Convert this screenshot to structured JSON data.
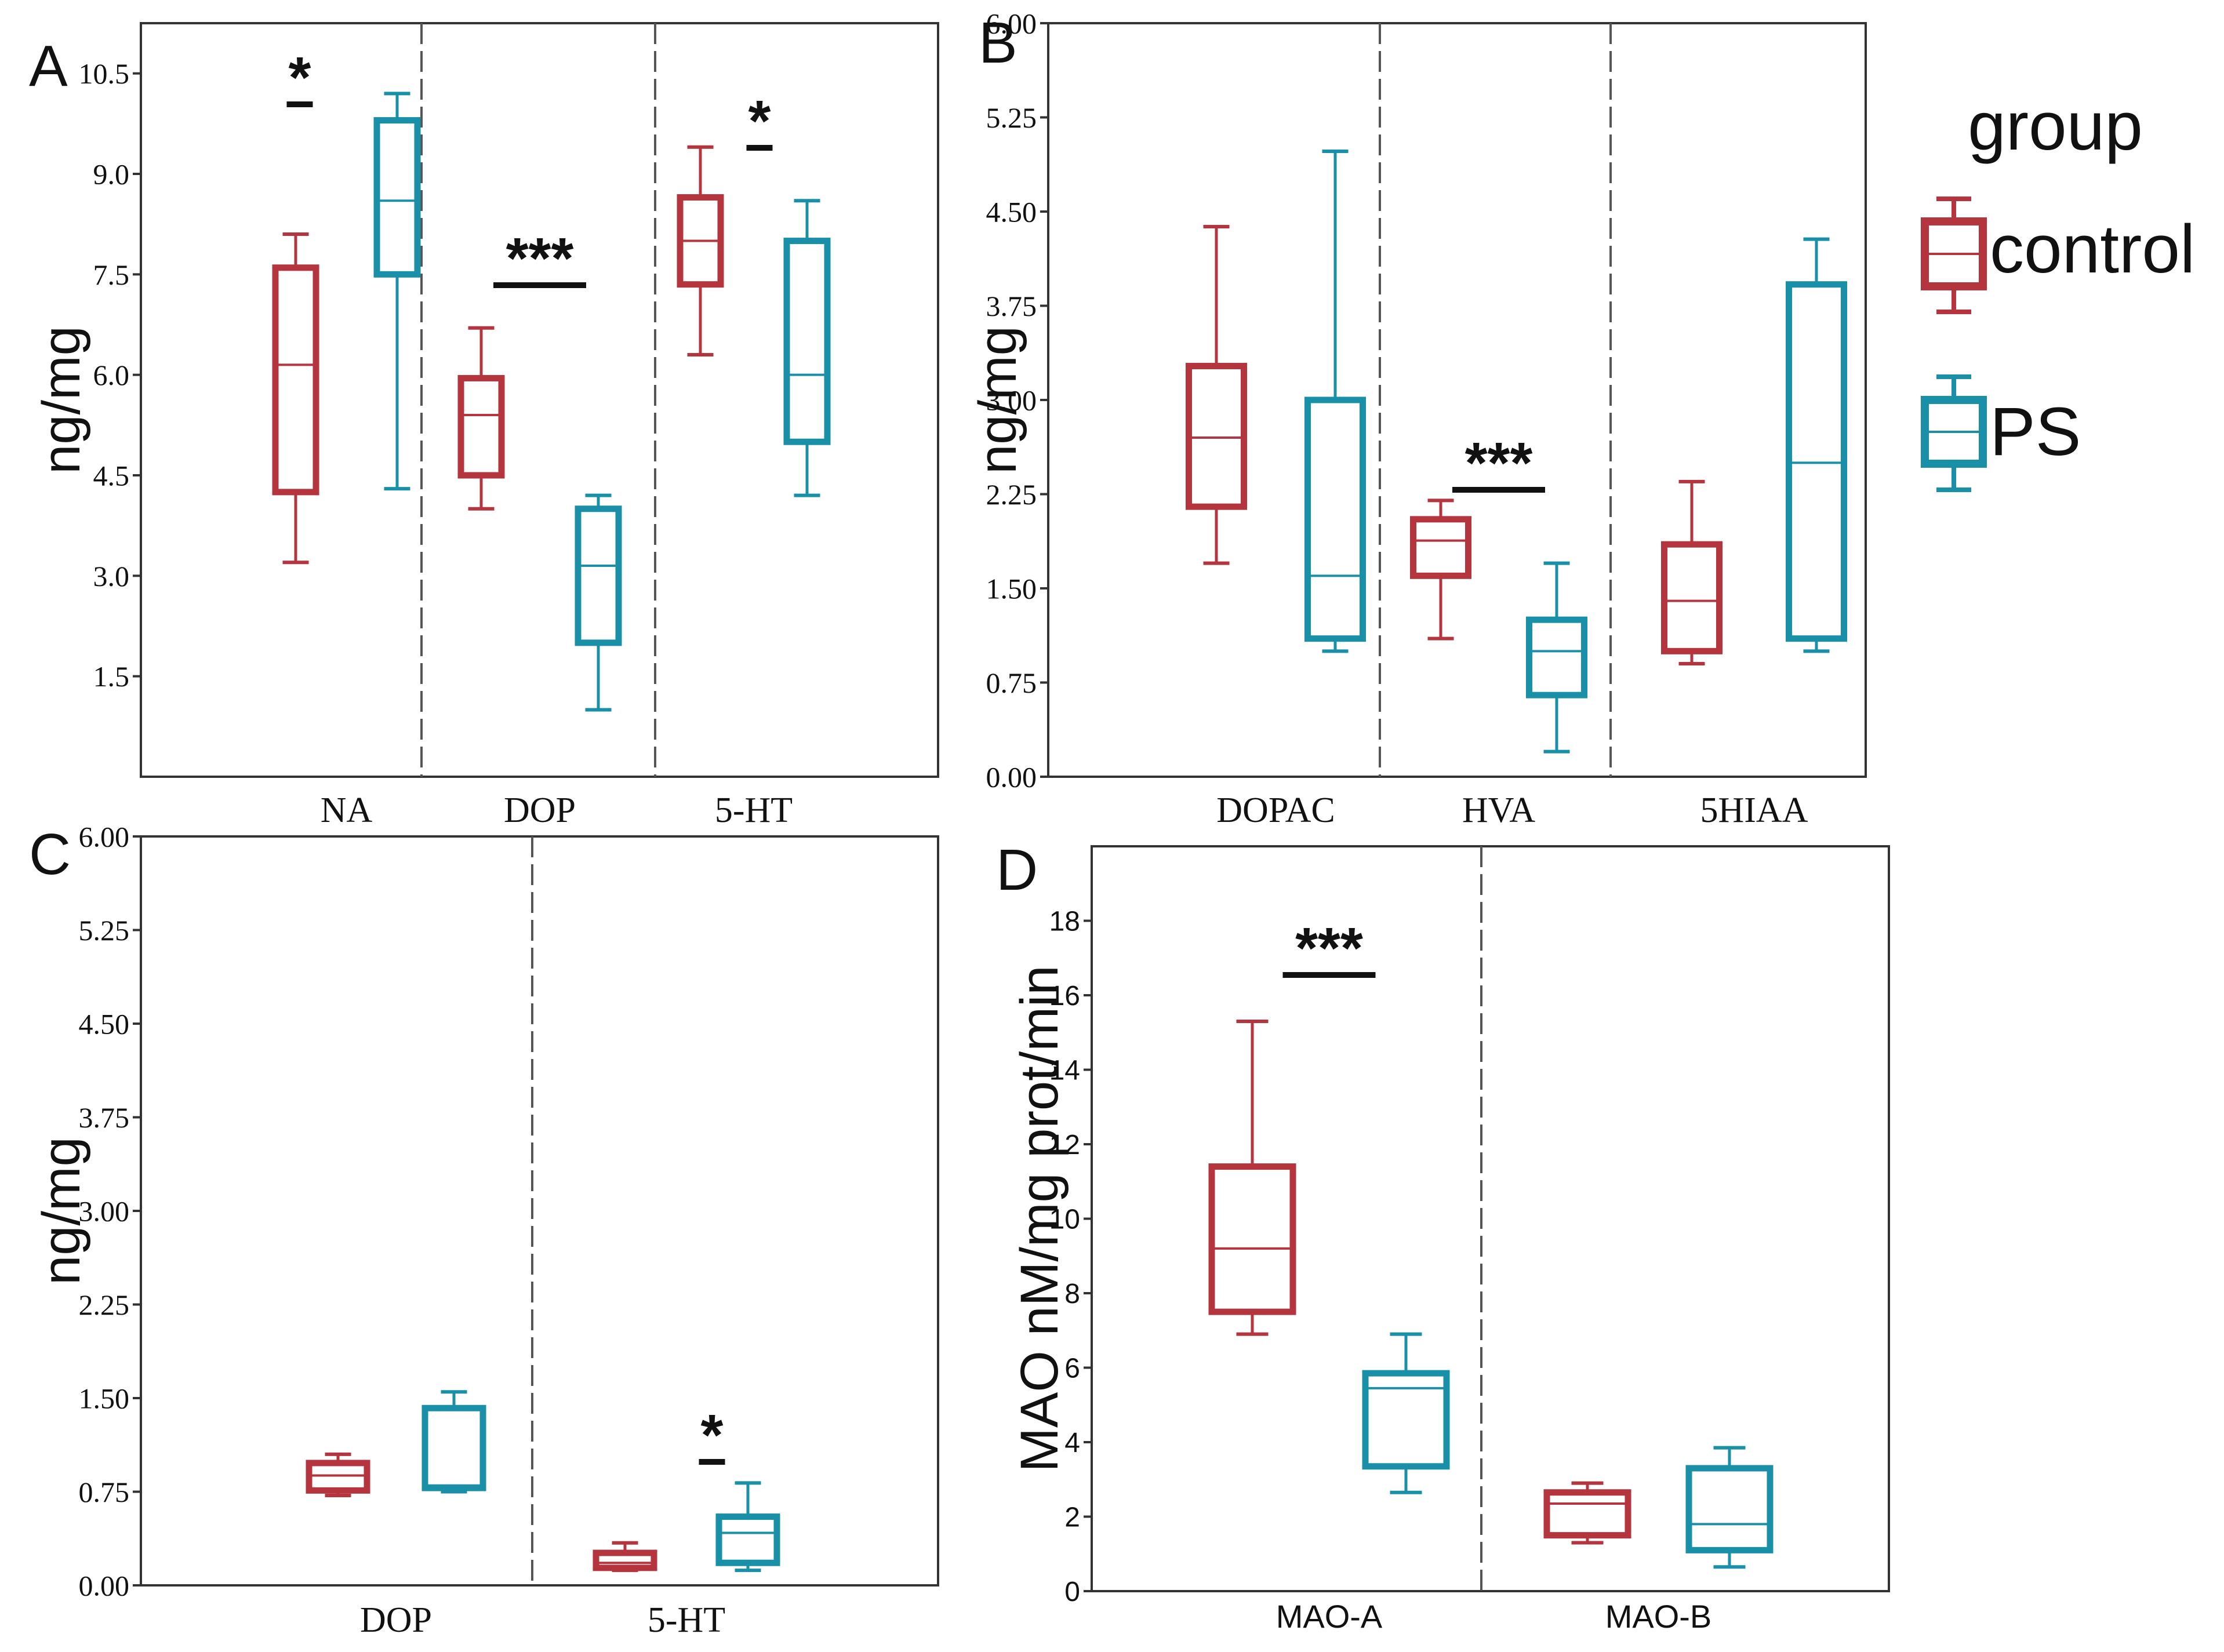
{
  "legend": {
    "title": "group",
    "items": [
      {
        "label": "control",
        "color": "#b5353f"
      },
      {
        "label": "PS",
        "color": "#1a8fa8"
      }
    ]
  },
  "colors": {
    "control": "#b5353f",
    "PS": "#1a8fa8",
    "axis": "#333333",
    "text": "#111111"
  },
  "chart_data": [
    {
      "type": "box",
      "panel_label": "A",
      "ylabel": "ng/mg",
      "ylim": [
        0,
        11.25
      ],
      "yticks": [
        1.5,
        3.0,
        4.5,
        6.0,
        7.5,
        9.0,
        10.5
      ],
      "ytick_labels": [
        "1.5",
        "3.0",
        "4.5",
        "6.0",
        "7.5",
        "9.0",
        "10.5"
      ],
      "categories": [
        "NA",
        "DOP",
        "5-HT"
      ],
      "series": [
        {
          "name": "control",
          "boxes": [
            {
              "min": 3.2,
              "q1": 4.25,
              "median": 6.15,
              "q3": 7.6,
              "max": 8.1
            },
            {
              "min": 4.0,
              "q1": 4.5,
              "median": 5.4,
              "q3": 5.95,
              "max": 6.7
            },
            {
              "min": 6.3,
              "q1": 7.35,
              "median": 8.0,
              "q3": 8.65,
              "max": 9.4
            }
          ]
        },
        {
          "name": "PS",
          "boxes": [
            {
              "min": 4.3,
              "q1": 7.5,
              "median": 8.6,
              "q3": 9.8,
              "max": 10.2
            },
            {
              "min": 1.0,
              "q1": 2.0,
              "median": 3.15,
              "q3": 4.0,
              "max": 4.2
            },
            {
              "min": 4.2,
              "q1": 5.0,
              "median": 6.0,
              "q3": 8.0,
              "max": 8.6
            }
          ]
        }
      ],
      "significance": [
        {
          "category": "NA",
          "label": "*"
        },
        {
          "category": "DOP",
          "label": "***"
        },
        {
          "category": "5-HT",
          "label": "*"
        }
      ]
    },
    {
      "type": "box",
      "panel_label": "B",
      "ylabel": "ng/mg",
      "ylim": [
        0,
        6.0
      ],
      "yticks": [
        0,
        0.75,
        1.5,
        2.25,
        3.0,
        3.75,
        4.5,
        5.25,
        6.0
      ],
      "ytick_labels": [
        "0.00",
        "0.75",
        "1.50",
        "2.25",
        "3.00",
        "3.75",
        "4.50",
        "5.25",
        "6.00"
      ],
      "categories": [
        "DOPAC",
        "HVA",
        "5HIAA"
      ],
      "series": [
        {
          "name": "control",
          "boxes": [
            {
              "min": 1.7,
              "q1": 2.15,
              "median": 2.7,
              "q3": 3.27,
              "max": 4.38
            },
            {
              "min": 1.1,
              "q1": 1.6,
              "median": 1.88,
              "q3": 2.05,
              "max": 2.2
            },
            {
              "min": 0.9,
              "q1": 1.0,
              "median": 1.4,
              "q3": 1.85,
              "max": 2.35
            }
          ]
        },
        {
          "name": "PS",
          "boxes": [
            {
              "min": 1.0,
              "q1": 1.1,
              "median": 1.6,
              "q3": 3.0,
              "max": 4.98
            },
            {
              "min": 0.2,
              "q1": 0.65,
              "median": 1.0,
              "q3": 1.25,
              "max": 1.7
            },
            {
              "min": 1.0,
              "q1": 1.1,
              "median": 2.5,
              "q3": 3.92,
              "max": 4.28
            }
          ]
        }
      ],
      "significance": [
        {
          "category": "HVA",
          "label": "***"
        }
      ]
    },
    {
      "type": "box",
      "panel_label": "C",
      "ylabel": "ng/mg",
      "ylim": [
        0,
        6.0
      ],
      "yticks": [
        0,
        0.75,
        1.5,
        2.25,
        3.0,
        3.75,
        4.5,
        5.25,
        6.0
      ],
      "ytick_labels": [
        "0.00",
        "0.75",
        "1.50",
        "2.25",
        "3.00",
        "3.75",
        "4.50",
        "5.25",
        "6.00"
      ],
      "categories": [
        "DOP",
        "5-HT"
      ],
      "series": [
        {
          "name": "control",
          "boxes": [
            {
              "min": 0.72,
              "q1": 0.76,
              "median": 0.88,
              "q3": 0.98,
              "max": 1.05
            },
            {
              "min": 0.12,
              "q1": 0.14,
              "median": 0.18,
              "q3": 0.26,
              "max": 0.34
            }
          ]
        },
        {
          "name": "PS",
          "boxes": [
            {
              "min": 0.75,
              "q1": 0.78,
              "median": 0.8,
              "q3": 1.42,
              "max": 1.55
            },
            {
              "min": 0.12,
              "q1": 0.18,
              "median": 0.42,
              "q3": 0.55,
              "max": 0.82
            }
          ]
        }
      ],
      "significance": [
        {
          "category": "5-HT",
          "label": "*"
        }
      ]
    },
    {
      "type": "box",
      "panel_label": "D",
      "ylabel": "MAO nM/mg prot/min",
      "ylim": [
        0,
        20
      ],
      "yticks": [
        0,
        2,
        4,
        6,
        8,
        10,
        12,
        14,
        16,
        18
      ],
      "ytick_labels": [
        "0",
        "2",
        "4",
        "6",
        "8",
        "10",
        "12",
        "14",
        "16",
        "18"
      ],
      "categories": [
        "MAO-A",
        "MAO-B"
      ],
      "series": [
        {
          "name": "control",
          "boxes": [
            {
              "min": 6.9,
              "q1": 7.5,
              "median": 9.2,
              "q3": 11.4,
              "max": 15.3
            },
            {
              "min": 1.3,
              "q1": 1.5,
              "median": 2.35,
              "q3": 2.65,
              "max": 2.9
            }
          ]
        },
        {
          "name": "PS",
          "boxes": [
            {
              "min": 2.65,
              "q1": 3.35,
              "median": 5.45,
              "q3": 5.85,
              "max": 6.9
            },
            {
              "min": 0.65,
              "q1": 1.1,
              "median": 1.8,
              "q3": 3.3,
              "max": 3.85
            }
          ]
        }
      ],
      "significance": [
        {
          "category": "MAO-A",
          "label": "***"
        }
      ]
    }
  ]
}
